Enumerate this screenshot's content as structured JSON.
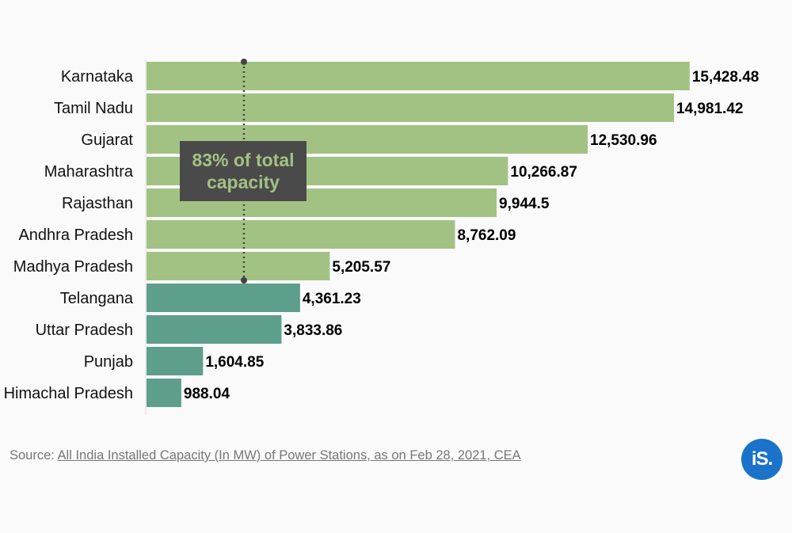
{
  "chart_data": {
    "type": "bar",
    "orientation": "horizontal",
    "categories": [
      "Karnataka",
      "Tamil Nadu",
      "Gujarat",
      "Maharashtra",
      "Rajasthan",
      "Andhra Pradesh",
      "Madhya Pradesh",
      "Telangana",
      "Uttar Pradesh",
      "Punjab",
      "Himachal Pradesh"
    ],
    "values": [
      15428.48,
      14981.42,
      12530.96,
      10266.87,
      9944.5,
      8762.09,
      5205.57,
      4361.23,
      3833.86,
      1604.85,
      988.04
    ],
    "value_labels": [
      "15,428.48",
      "14,981.42",
      "12,530.96",
      "10,266.87",
      "9,944.5",
      "8,762.09",
      "5,205.57",
      "4,361.23",
      "3,833.86",
      "1,604.85",
      "988.04"
    ],
    "highlight_count": 7,
    "colors": {
      "highlight": "#a2c283",
      "rest": "#5e9e8c"
    },
    "xlim": [
      0,
      15500
    ],
    "annotation": {
      "text_line1": "83% of total",
      "text_line2": "capacity",
      "spans_categories": [
        "Karnataka",
        "Madhya Pradesh"
      ],
      "bg_color": "#4a4a4a",
      "text_color": "#a2c283"
    }
  },
  "source": {
    "prefix": "Source: ",
    "link_text": "All India Installed Capacity (In MW) of Power Stations, as on Feb 28, 2021, CEA"
  },
  "logo": {
    "text": "iS."
  }
}
